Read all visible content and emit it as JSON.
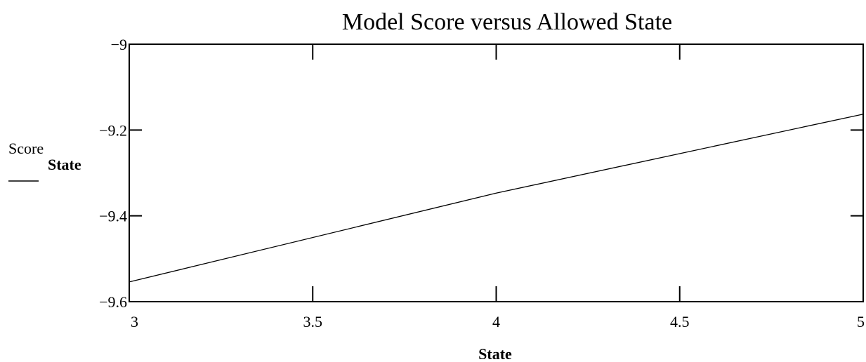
{
  "chart_data": {
    "type": "line",
    "title": "Model Score versus Allowed State",
    "xlabel": "State",
    "ylabel": {
      "main": "Score",
      "subscript": "State"
    },
    "xlim": [
      3,
      5
    ],
    "ylim": [
      -9.6,
      -9
    ],
    "x_ticks": [
      3,
      3.5,
      4,
      4.5,
      5
    ],
    "x_tick_labels": [
      "3",
      "3.5",
      "4",
      "4.5",
      "5"
    ],
    "y_ticks": [
      -9,
      -9.2,
      -9.4,
      -9.6
    ],
    "y_tick_labels": [
      "−9",
      "−9.2",
      "−9.4",
      "−9.6"
    ],
    "grid": false,
    "series": [
      {
        "x": [
          3,
          4,
          5
        ],
        "y": [
          -9.554,
          -9.347,
          -9.163
        ],
        "color": "#000000"
      }
    ]
  }
}
